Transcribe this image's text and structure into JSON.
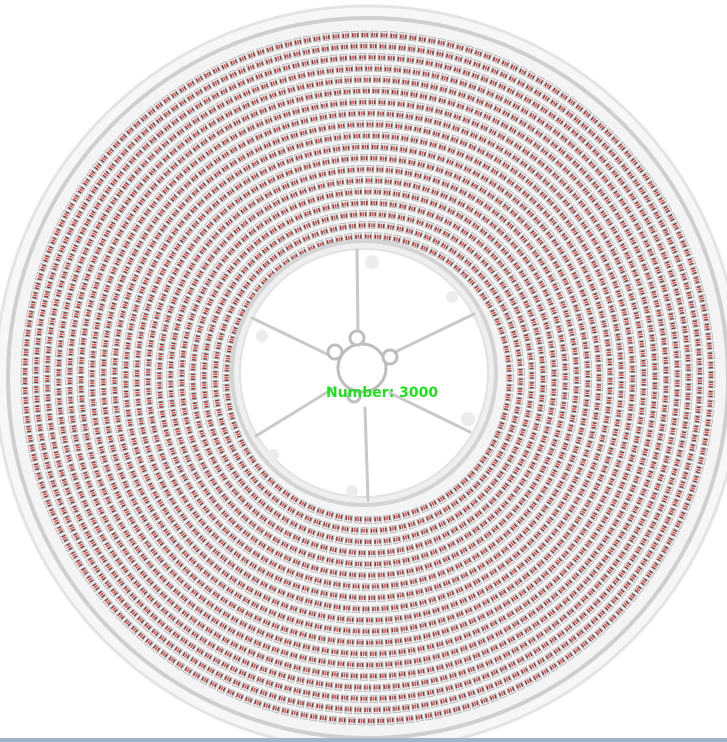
{
  "image": {
    "overlay_text": "Number: 3000",
    "colors": {
      "background": "#ffffff",
      "reel_face": "#f4f4f4",
      "rim": "#cfcfcf",
      "hub": "#ffffff",
      "spoke": "#c8c8c8",
      "component_body": "#e8e6e6",
      "component_pad": "#7a3b3b",
      "component_marker": "#e24b4b",
      "overlay_text": "#22dd22",
      "bottom_strip": "#9fb4c8"
    },
    "component_count_shown": 3000,
    "spokes": 6
  }
}
